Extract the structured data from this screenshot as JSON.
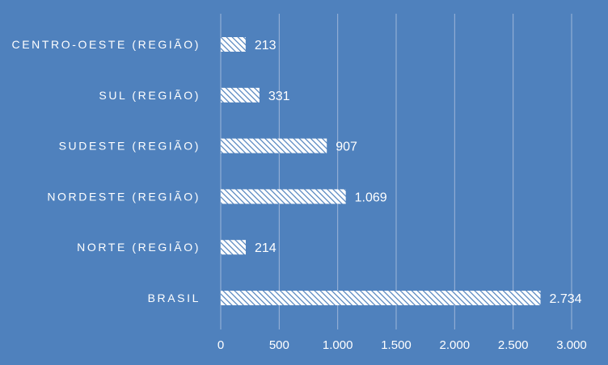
{
  "colors": {
    "background": "#4f81bd",
    "gridline": "#9db6d9",
    "bar_fill": "#ffffff",
    "bar_hatch": "#4f81bd",
    "text": "#ffffff"
  },
  "chart_data": {
    "type": "bar",
    "orientation": "horizontal",
    "bar_pattern": "diagonal-hatch",
    "categories": [
      "CENTRO-OESTE (REGIÃO)",
      "SUL (REGIÃO)",
      "SUDESTE (REGIÃO)",
      "NORDESTE (REGIÃO)",
      "NORTE (REGIÃO)",
      "BRASIL"
    ],
    "values": [
      213,
      331,
      907,
      1069,
      214,
      2734
    ],
    "value_labels": [
      "213",
      "331",
      "907",
      "1.069",
      "214",
      "2.734"
    ],
    "x_ticks": [
      0,
      500,
      1000,
      1500,
      2000,
      2500,
      3000
    ],
    "x_tick_labels": [
      "0",
      "500",
      "1.000",
      "1.500",
      "2.000",
      "2.500",
      "3.000"
    ],
    "xlim": [
      0,
      3000
    ],
    "grid": true,
    "legend": "none",
    "title": "",
    "xlabel": "",
    "ylabel": ""
  }
}
